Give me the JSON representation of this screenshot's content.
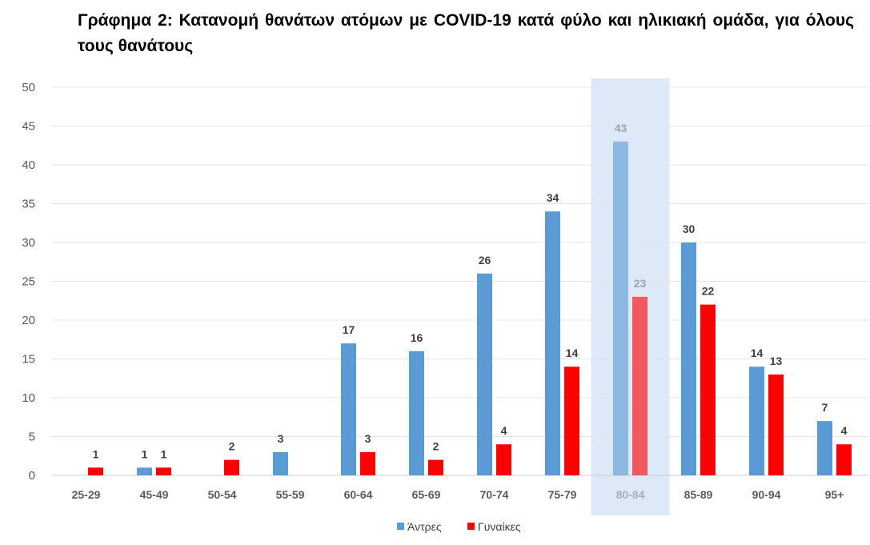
{
  "chart_data": {
    "type": "bar",
    "title": "Γράφημα 2: Κατανομή θανάτων ατόμων με COVID-19 κατά φύλο και ηλικιακή ομάδα, για όλους τους θανάτους",
    "xlabel": "",
    "ylabel": "",
    "categories": [
      "25-29",
      "45-49",
      "50-54",
      "55-59",
      "60-64",
      "65-69",
      "70-74",
      "75-79",
      "80-84",
      "85-89",
      "90-94",
      "95+"
    ],
    "series": [
      {
        "name": "Άντρες",
        "color": "#5B9BD5",
        "values": [
          null,
          1,
          null,
          3,
          17,
          16,
          26,
          34,
          43,
          30,
          14,
          7
        ]
      },
      {
        "name": "Γυναίκες",
        "color": "#FF0000",
        "values": [
          1,
          1,
          2,
          null,
          3,
          2,
          4,
          14,
          23,
          22,
          13,
          4
        ]
      }
    ],
    "yticks": [
      0,
      5,
      10,
      15,
      20,
      25,
      30,
      35,
      40,
      45,
      50
    ],
    "ylim": [
      0,
      50
    ],
    "grid": true,
    "legend_position": "bottom",
    "highlighted_category": "80-84",
    "highlight_color": "#DDE9F6"
  }
}
